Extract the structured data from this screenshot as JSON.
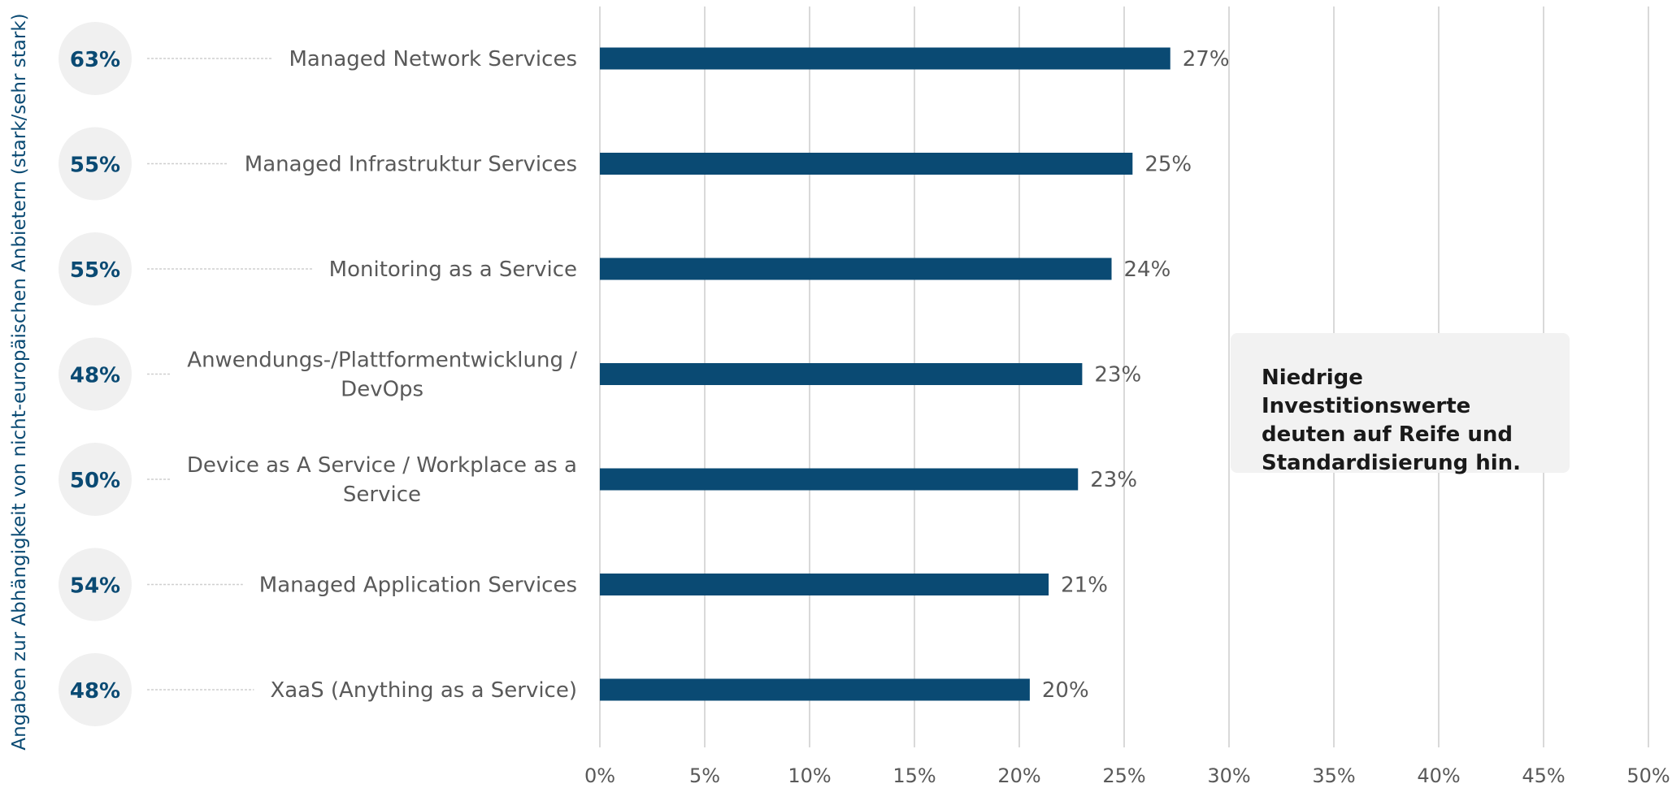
{
  "chart_data": {
    "type": "bar",
    "orientation": "horizontal",
    "categories": [
      [
        "Managed Network Services"
      ],
      [
        "Managed Infrastruktur Services"
      ],
      [
        "Monitoring as a Service"
      ],
      [
        "Anwendungs-/Plattformentwicklung /",
        "DevOps"
      ],
      [
        "Device as A Service / Workplace as a",
        "Service"
      ],
      [
        "Managed Application Services"
      ],
      [
        "XaaS (Anything as a Service)"
      ]
    ],
    "values": [
      27.2,
      25.4,
      24.4,
      23.0,
      22.8,
      21.4,
      20.5
    ],
    "value_labels": [
      "27%",
      "25%",
      "24%",
      "23%",
      "23%",
      "21%",
      "20%"
    ],
    "dependency_labels": [
      "63%",
      "55%",
      "55%",
      "48%",
      "50%",
      "54%",
      "48%"
    ],
    "dependency_title": "Angaben zur Abhängigkeit von nicht-europäischen Anbietern (stark/sehr stark)",
    "xlim": [
      0,
      50
    ],
    "x_ticks": [
      0,
      5,
      10,
      15,
      20,
      25,
      30,
      35,
      40,
      45,
      50
    ],
    "x_tick_labels": [
      "0%",
      "5%",
      "10%",
      "15%",
      "20%",
      "25%",
      "30%",
      "35%",
      "40%",
      "45%",
      "50%"
    ],
    "grid": "vertical",
    "bar_color": "#0a4a73",
    "dependency_circle_color": "#f0f0f0",
    "dependency_text_color": "#0a4a73",
    "gridline_color": "#d9d9d9"
  },
  "callout": {
    "text": "Niedrige Investitionswerte\ndeuten auf Reife und\nStandardisierung hin.",
    "background": "#f2f2f2"
  }
}
